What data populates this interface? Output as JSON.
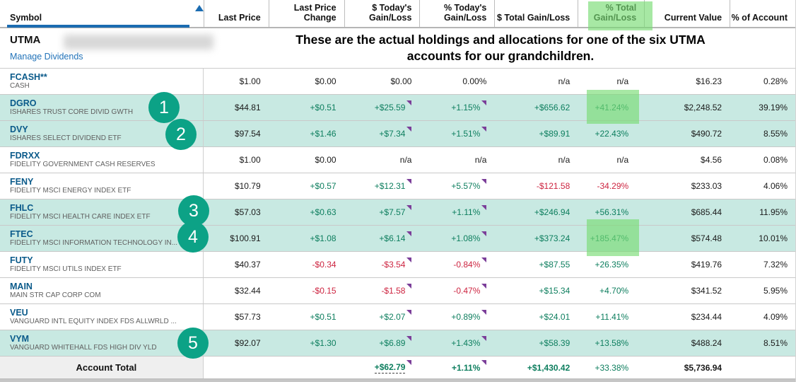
{
  "header": {
    "columns": [
      {
        "label": "Symbol"
      },
      {
        "label": "Last Price"
      },
      {
        "label": "Last Price\nChange"
      },
      {
        "label": "$ Today's\nGain/Loss"
      },
      {
        "label": "% Today's\nGain/Loss"
      },
      {
        "label": "$ Total Gain/Loss"
      },
      {
        "label": "% Total\nGain/Loss"
      },
      {
        "label": "Current Value"
      },
      {
        "label": "% of Account"
      }
    ],
    "sort_icon": "sort-ascending-triangle"
  },
  "account": {
    "title": "UTMA",
    "manage_link": "Manage Dividends"
  },
  "annotation": {
    "line1": "These are the actual holdings and allocations for one of the six UTMA",
    "line2": "accounts for our grandchildren.",
    "badges": [
      "1",
      "2",
      "3",
      "4",
      "5"
    ],
    "highlight_color": "#8fdf9a",
    "badge_color": "#0ca286"
  },
  "rows": [
    {
      "symbol": "FCASH**",
      "description": "CASH",
      "last_price": "$1.00",
      "change": "$0.00",
      "today_dollar": "$0.00",
      "today_pct": "0.00%",
      "total_dollar": "n/a",
      "total_pct": "n/a",
      "current_value": "$16.23",
      "pct_account": "0.28%",
      "highlight": false,
      "flags": false
    },
    {
      "symbol": "DGRO",
      "description": "ISHARES TRUST CORE DIVID GWTH",
      "last_price": "$44.81",
      "change": "+$0.51",
      "today_dollar": "+$25.59",
      "today_pct": "+1.15%",
      "total_dollar": "+$656.62",
      "total_pct": "+41.24%",
      "current_value": "$2,248.52",
      "pct_account": "39.19%",
      "highlight": true,
      "flags": true
    },
    {
      "symbol": "DVY",
      "description": "ISHARES SELECT DIVIDEND ETF",
      "last_price": "$97.54",
      "change": "+$1.46",
      "today_dollar": "+$7.34",
      "today_pct": "+1.51%",
      "total_dollar": "+$89.91",
      "total_pct": "+22.43%",
      "current_value": "$490.72",
      "pct_account": "8.55%",
      "highlight": true,
      "flags": true
    },
    {
      "symbol": "FDRXX",
      "description": "FIDELITY GOVERNMENT CASH RESERVES",
      "last_price": "$1.00",
      "change": "$0.00",
      "today_dollar": "n/a",
      "today_pct": "n/a",
      "total_dollar": "n/a",
      "total_pct": "n/a",
      "current_value": "$4.56",
      "pct_account": "0.08%",
      "highlight": false,
      "flags": false
    },
    {
      "symbol": "FENY",
      "description": "FIDELITY MSCI ENERGY INDEX ETF",
      "last_price": "$10.79",
      "change": "+$0.57",
      "today_dollar": "+$12.31",
      "today_pct": "+5.57%",
      "total_dollar": "-$121.58",
      "total_pct": "-34.29%",
      "current_value": "$233.03",
      "pct_account": "4.06%",
      "highlight": false,
      "flags": true
    },
    {
      "symbol": "FHLC",
      "description": "FIDELITY MSCI HEALTH CARE INDEX ETF",
      "last_price": "$57.03",
      "change": "+$0.63",
      "today_dollar": "+$7.57",
      "today_pct": "+1.11%",
      "total_dollar": "+$246.94",
      "total_pct": "+56.31%",
      "current_value": "$685.44",
      "pct_account": "11.95%",
      "highlight": true,
      "flags": true
    },
    {
      "symbol": "FTEC",
      "description": "FIDELITY MSCI INFORMATION TECHNOLOGY IN...",
      "last_price": "$100.91",
      "change": "+$1.08",
      "today_dollar": "+$6.14",
      "today_pct": "+1.08%",
      "total_dollar": "+$373.24",
      "total_pct": "+185.47%",
      "current_value": "$574.48",
      "pct_account": "10.01%",
      "highlight": true,
      "flags": true
    },
    {
      "symbol": "FUTY",
      "description": "FIDELITY MSCI UTILS INDEX ETF",
      "last_price": "$40.37",
      "change": "-$0.34",
      "today_dollar": "-$3.54",
      "today_pct": "-0.84%",
      "total_dollar": "+$87.55",
      "total_pct": "+26.35%",
      "current_value": "$419.76",
      "pct_account": "7.32%",
      "highlight": false,
      "flags": true
    },
    {
      "symbol": "MAIN",
      "description": "MAIN STR CAP CORP COM",
      "last_price": "$32.44",
      "change": "-$0.15",
      "today_dollar": "-$1.58",
      "today_pct": "-0.47%",
      "total_dollar": "+$15.34",
      "total_pct": "+4.70%",
      "current_value": "$341.52",
      "pct_account": "5.95%",
      "highlight": false,
      "flags": true
    },
    {
      "symbol": "VEU",
      "description": "VANGUARD INTL EQUITY INDEX FDS ALLWRLD ...",
      "last_price": "$57.73",
      "change": "+$0.51",
      "today_dollar": "+$2.07",
      "today_pct": "+0.89%",
      "total_dollar": "+$24.01",
      "total_pct": "+11.41%",
      "current_value": "$234.44",
      "pct_account": "4.09%",
      "highlight": false,
      "flags": true
    },
    {
      "symbol": "VYM",
      "description": "VANGUARD WHITEHALL FDS HIGH DIV YLD",
      "last_price": "$92.07",
      "change": "+$1.30",
      "today_dollar": "+$6.89",
      "today_pct": "+1.43%",
      "total_dollar": "+$58.39",
      "total_pct": "+13.58%",
      "current_value": "$488.24",
      "pct_account": "8.51%",
      "highlight": true,
      "flags": true
    }
  ],
  "total": {
    "label": "Account Total",
    "today_dollar": "+$62.79",
    "today_pct": "+1.11%",
    "total_dollar": "+$1,430.42",
    "total_pct": "+33.38%",
    "current_value": "$5,736.94"
  },
  "colors": {
    "positive": "#0d7e5e",
    "negative": "#cd2440",
    "row_highlight": "#c8e9e2",
    "green_highlight": "#8fdf9a",
    "ticker_link": "#0a5a8a",
    "accent_blue": "#1b6cb1"
  }
}
